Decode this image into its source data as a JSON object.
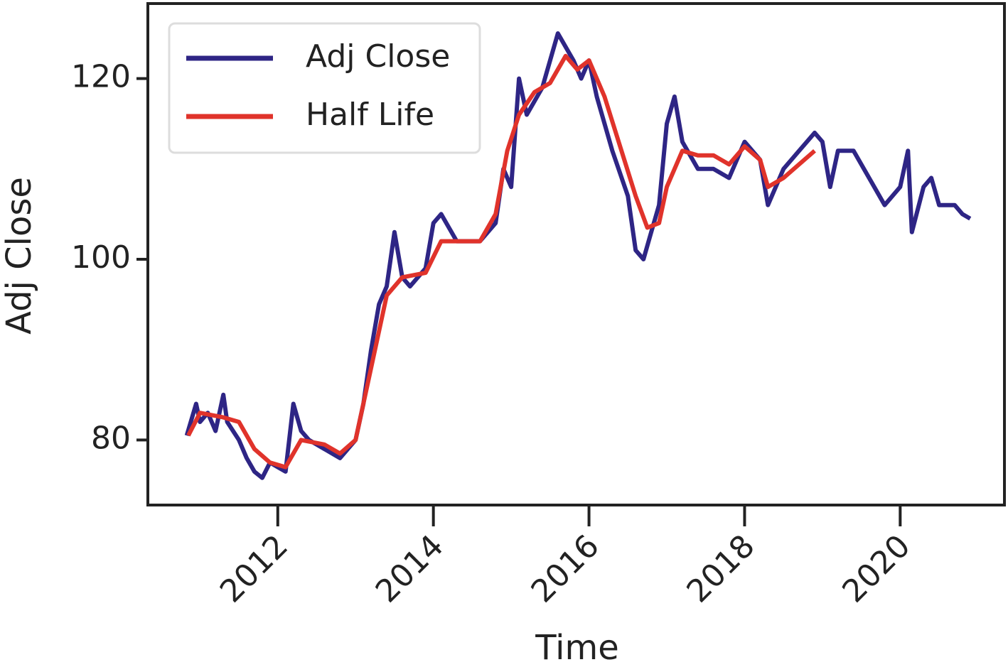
{
  "chart_data": {
    "type": "line",
    "x_label": "Time",
    "y_label": "Adj Close",
    "xlim": [
      2010.33,
      2021.34
    ],
    "ylim": [
      72.8,
      128.3
    ],
    "xticks": [
      2012,
      2014,
      2016,
      2018,
      2020
    ],
    "yticks": [
      80,
      100,
      120
    ],
    "legend": "upper left",
    "series": [
      {
        "name": "Adj Close",
        "color": "#2e2585",
        "x": [
          2010.83,
          2010.95,
          2011.0,
          2011.1,
          2011.2,
          2011.3,
          2011.35,
          2011.5,
          2011.6,
          2011.7,
          2011.8,
          2011.9,
          2012.0,
          2012.1,
          2012.2,
          2012.3,
          2012.4,
          2012.6,
          2012.8,
          2012.9,
          2013.0,
          2013.1,
          2013.2,
          2013.3,
          2013.4,
          2013.5,
          2013.6,
          2013.7,
          2013.9,
          2014.0,
          2014.1,
          2014.3,
          2014.6,
          2014.8,
          2014.9,
          2015.0,
          2015.1,
          2015.2,
          2015.4,
          2015.6,
          2015.8,
          2015.9,
          2016.0,
          2016.1,
          2016.3,
          2016.5,
          2016.6,
          2016.7,
          2016.8,
          2016.9,
          2017.0,
          2017.1,
          2017.2,
          2017.4,
          2017.6,
          2017.8,
          2018.0,
          2018.2,
          2018.3,
          2018.5,
          2018.7,
          2018.9,
          2019.0,
          2019.1,
          2019.2,
          2019.4,
          2019.6,
          2019.8,
          2020.0,
          2020.1,
          2020.15,
          2020.3,
          2020.4,
          2020.5,
          2020.7,
          2020.8,
          2020.9
        ],
        "values": [
          80.5,
          84,
          82,
          83,
          81,
          85,
          82,
          80,
          78,
          76.5,
          75.8,
          77.5,
          77,
          76.5,
          84,
          81,
          80,
          79,
          78,
          79,
          80,
          84,
          90,
          95,
          97,
          103,
          98,
          97,
          99,
          104,
          105,
          102,
          102,
          104,
          110,
          108,
          120,
          116,
          119,
          125,
          122,
          120,
          122,
          118,
          112,
          107,
          101,
          100,
          103,
          106,
          115,
          118,
          113,
          110,
          110,
          109,
          113,
          111,
          106,
          110,
          112,
          114,
          113,
          108,
          112,
          112,
          109,
          106,
          108,
          112,
          103,
          108,
          109,
          106,
          106,
          105,
          104.5
        ]
      },
      {
        "name": "Half Life",
        "color": "#e0332b",
        "x": [
          2010.85,
          2011.0,
          2011.3,
          2011.5,
          2011.7,
          2011.9,
          2012.1,
          2012.3,
          2012.6,
          2012.8,
          2013.0,
          2013.2,
          2013.4,
          2013.6,
          2013.9,
          2014.1,
          2014.4,
          2014.6,
          2014.8,
          2014.95,
          2015.1,
          2015.3,
          2015.5,
          2015.7,
          2015.85,
          2016.0,
          2016.2,
          2016.4,
          2016.6,
          2016.75,
          2016.9,
          2017.0,
          2017.2,
          2017.4,
          2017.6,
          2017.8,
          2018.0,
          2018.2,
          2018.3,
          2018.5,
          2018.7,
          2018.9
        ],
        "values": [
          80.5,
          83,
          82.5,
          82,
          79,
          77.5,
          77,
          80,
          79.5,
          78.5,
          80,
          88,
          96,
          98,
          98.5,
          102,
          102,
          102,
          105,
          112,
          116,
          118.5,
          119.5,
          122.5,
          121,
          122,
          118,
          112.5,
          107,
          103.5,
          104,
          108,
          112,
          111.5,
          111.5,
          110.5,
          112.5,
          111,
          108,
          109,
          110.5,
          112
        ]
      }
    ]
  }
}
